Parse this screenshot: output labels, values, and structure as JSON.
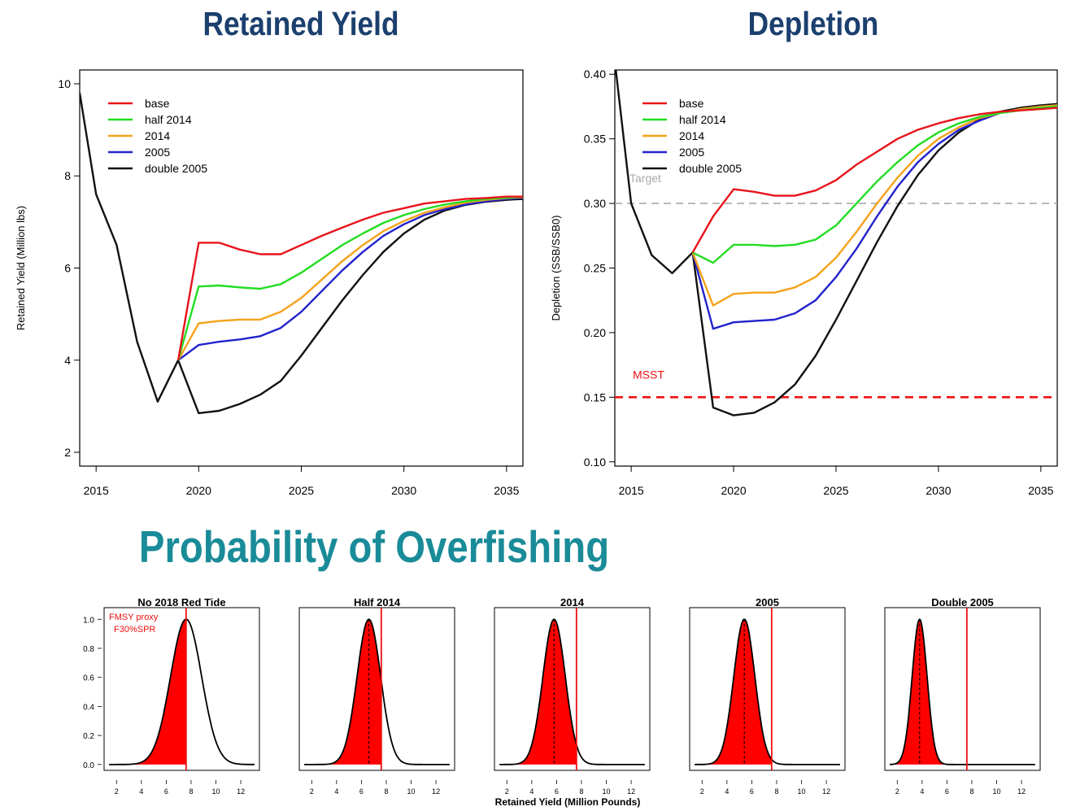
{
  "titles": {
    "retained_yield": "Retained Yield",
    "depletion": "Depletion",
    "probability": "Probability of Overfishing"
  },
  "colors": {
    "base": "#e8141b",
    "half 2014": "#22dd22",
    "2014": "#f5a21b",
    "2005": "#2222cc",
    "double 2005": "#111111",
    "target": "#aaaaaa",
    "msst": "#ee1111",
    "fill": "#ff0000"
  },
  "chart_data": [
    {
      "type": "line",
      "title": "Retained Yield",
      "xlabel": "",
      "ylabel": "Retained Yield (Million lbs)",
      "xlim": [
        2014.2,
        2035.8
      ],
      "ylim": [
        1.7,
        10.3
      ],
      "xticks": [
        2015,
        2020,
        2025,
        2030,
        2035
      ],
      "yticks": [
        2,
        4,
        6,
        8,
        10
      ],
      "legend": "top-left",
      "series": [
        {
          "name": "base",
          "x": [
            2019,
            2020,
            2021,
            2022,
            2023,
            2024,
            2025,
            2026,
            2027,
            2028,
            2029,
            2030,
            2031,
            2032,
            2033,
            2034,
            2035,
            2035.8
          ],
          "y": [
            4.0,
            6.55,
            6.55,
            6.4,
            6.3,
            6.3,
            6.5,
            6.7,
            6.88,
            7.05,
            7.2,
            7.3,
            7.4,
            7.45,
            7.5,
            7.52,
            7.55,
            7.55
          ]
        },
        {
          "name": "half 2014",
          "x": [
            2019,
            2020,
            2021,
            2022,
            2023,
            2024,
            2025,
            2026,
            2027,
            2028,
            2029,
            2030,
            2031,
            2032,
            2033,
            2034,
            2035,
            2035.8
          ],
          "y": [
            4.0,
            5.6,
            5.62,
            5.58,
            5.55,
            5.65,
            5.9,
            6.2,
            6.5,
            6.75,
            6.98,
            7.15,
            7.28,
            7.38,
            7.45,
            7.5,
            7.53,
            7.55
          ]
        },
        {
          "name": "2014",
          "x": [
            2019,
            2020,
            2021,
            2022,
            2023,
            2024,
            2025,
            2026,
            2027,
            2028,
            2029,
            2030,
            2031,
            2032,
            2033,
            2034,
            2035,
            2035.8
          ],
          "y": [
            4.0,
            4.8,
            4.85,
            4.88,
            4.88,
            5.05,
            5.35,
            5.75,
            6.15,
            6.5,
            6.8,
            7.02,
            7.2,
            7.32,
            7.42,
            7.48,
            7.52,
            7.54
          ]
        },
        {
          "name": "2005",
          "x": [
            2019,
            2020,
            2021,
            2022,
            2023,
            2024,
            2025,
            2026,
            2027,
            2028,
            2029,
            2030,
            2031,
            2032,
            2033,
            2034,
            2035,
            2035.8
          ],
          "y": [
            4.0,
            4.33,
            4.4,
            4.45,
            4.52,
            4.7,
            5.05,
            5.5,
            5.95,
            6.35,
            6.7,
            6.95,
            7.15,
            7.28,
            7.38,
            7.45,
            7.5,
            7.53
          ]
        },
        {
          "name": "double 2005",
          "x": [
            2014.2,
            2015,
            2016,
            2017,
            2018,
            2019,
            2020,
            2021,
            2022,
            2023,
            2024,
            2025,
            2026,
            2027,
            2028,
            2029,
            2030,
            2031,
            2032,
            2033,
            2034,
            2035,
            2035.8
          ],
          "y": [
            9.8,
            7.6,
            6.5,
            4.4,
            3.1,
            4.0,
            2.85,
            2.9,
            3.05,
            3.25,
            3.55,
            4.1,
            4.7,
            5.3,
            5.85,
            6.35,
            6.75,
            7.05,
            7.25,
            7.37,
            7.44,
            7.48,
            7.5
          ]
        }
      ]
    },
    {
      "type": "line",
      "title": "Depletion",
      "xlabel": "",
      "ylabel": "Depletion (SSB/SSB0)",
      "xlim": [
        2014.2,
        2035.8
      ],
      "ylim": [
        0.0967,
        0.4033
      ],
      "xticks": [
        2015,
        2020,
        2025,
        2030,
        2035
      ],
      "yticks": [
        0.1,
        0.15,
        0.2,
        0.25,
        0.3,
        0.35,
        0.4
      ],
      "legend": "top-left",
      "reference_lines": [
        {
          "label": "Target",
          "y": 0.3,
          "style": "dashed",
          "color": "gray"
        },
        {
          "label": "MSST",
          "y": 0.15,
          "style": "dashed",
          "color": "red"
        }
      ],
      "series": [
        {
          "name": "base",
          "x": [
            2018,
            2019,
            2020,
            2021,
            2022,
            2023,
            2024,
            2025,
            2026,
            2027,
            2028,
            2029,
            2030,
            2031,
            2032,
            2033,
            2034,
            2035,
            2035.8
          ],
          "y": [
            0.262,
            0.29,
            0.311,
            0.309,
            0.306,
            0.306,
            0.31,
            0.318,
            0.33,
            0.34,
            0.35,
            0.357,
            0.362,
            0.366,
            0.369,
            0.371,
            0.372,
            0.373,
            0.374
          ]
        },
        {
          "name": "half 2014",
          "x": [
            2018,
            2019,
            2020,
            2021,
            2022,
            2023,
            2024,
            2025,
            2026,
            2027,
            2028,
            2029,
            2030,
            2031,
            2032,
            2033,
            2034,
            2035,
            2035.8
          ],
          "y": [
            0.262,
            0.254,
            0.268,
            0.268,
            0.267,
            0.268,
            0.272,
            0.283,
            0.3,
            0.317,
            0.332,
            0.345,
            0.355,
            0.362,
            0.367,
            0.37,
            0.372,
            0.374,
            0.375
          ]
        },
        {
          "name": "2014",
          "x": [
            2018,
            2019,
            2020,
            2021,
            2022,
            2023,
            2024,
            2025,
            2026,
            2027,
            2028,
            2029,
            2030,
            2031,
            2032,
            2033,
            2034,
            2035,
            2035.8
          ],
          "y": [
            0.262,
            0.221,
            0.23,
            0.231,
            0.231,
            0.235,
            0.243,
            0.258,
            0.278,
            0.3,
            0.32,
            0.337,
            0.35,
            0.359,
            0.366,
            0.37,
            0.373,
            0.375,
            0.376
          ]
        },
        {
          "name": "2005",
          "x": [
            2018,
            2019,
            2020,
            2021,
            2022,
            2023,
            2024,
            2025,
            2026,
            2027,
            2028,
            2029,
            2030,
            2031,
            2032,
            2033,
            2034,
            2035,
            2035.8
          ],
          "y": [
            0.262,
            0.203,
            0.208,
            0.209,
            0.21,
            0.215,
            0.225,
            0.243,
            0.265,
            0.29,
            0.313,
            0.332,
            0.346,
            0.357,
            0.364,
            0.37,
            0.373,
            0.375,
            0.376
          ]
        },
        {
          "name": "double 2005",
          "x": [
            2014.2,
            2015,
            2016,
            2017,
            2018,
            2019,
            2020,
            2021,
            2022,
            2023,
            2024,
            2025,
            2026,
            2027,
            2028,
            2029,
            2030,
            2031,
            2032,
            2033,
            2034,
            2035,
            2035.8
          ],
          "y": [
            0.41,
            0.3,
            0.26,
            0.246,
            0.262,
            0.142,
            0.136,
            0.138,
            0.146,
            0.16,
            0.182,
            0.21,
            0.24,
            0.27,
            0.298,
            0.322,
            0.341,
            0.355,
            0.365,
            0.371,
            0.374,
            0.376,
            0.377
          ]
        }
      ]
    },
    {
      "type": "area",
      "title": "Probability of Overfishing",
      "xlabel": "Retained Yield (Million Pounds)",
      "ylabel": "",
      "xlim": [
        1.0,
        13.5
      ],
      "ylim": [
        -0.04,
        1.08
      ],
      "xticks": [
        2,
        4,
        6,
        8,
        10,
        12
      ],
      "yticks": [
        0.0,
        0.2,
        0.4,
        0.6,
        0.8,
        1.0
      ],
      "annotation": [
        "FMSY proxy",
        "F30%SPR"
      ],
      "panels": [
        {
          "title": "No 2018 Red Tide",
          "mean": 7.6,
          "sd": 1.25,
          "fmsy": 7.6
        },
        {
          "title": "Half 2014",
          "mean": 6.6,
          "sd": 0.95,
          "fmsy": 7.6
        },
        {
          "title": "2014",
          "mean": 5.8,
          "sd": 0.9,
          "fmsy": 7.6
        },
        {
          "title": "2005",
          "mean": 5.4,
          "sd": 0.85,
          "fmsy": 7.6
        },
        {
          "title": "Double 2005",
          "mean": 3.8,
          "sd": 0.6,
          "fmsy": 7.6
        }
      ]
    }
  ]
}
